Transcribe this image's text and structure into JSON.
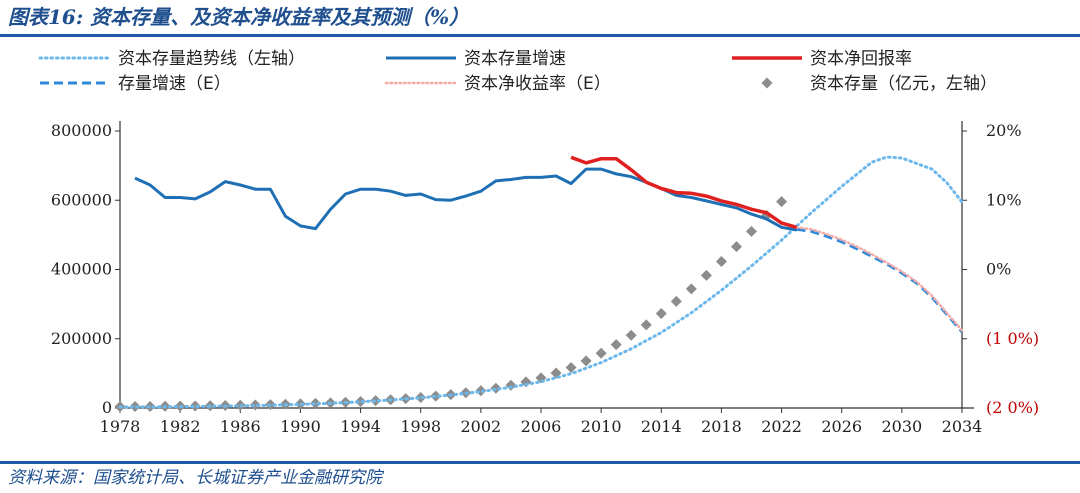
{
  "title": "图表16:  资本存量、及资本净收益率及其预测（%）",
  "source": "资料来源：国家统计局、长城证券产业金融研究院",
  "colors": {
    "header_blue": "#1f5aa6",
    "growth_line": "#1f6fb5",
    "trend_dotted": "#6cb8ec",
    "growth_forecast": "#2e8ad8",
    "return_line": "#e02020",
    "return_forecast": "#f5aaaa",
    "stock_marker": "#8c8c8c",
    "negative_tick": "#c00000"
  },
  "chart_data": {
    "type": "line",
    "legend_position": "top",
    "left_axis": {
      "ylim": [
        0,
        800000
      ],
      "ticks": [
        0,
        200000,
        400000,
        600000,
        800000
      ],
      "tick_labels": [
        "0",
        "200000",
        "400000",
        "600000",
        "800000"
      ]
    },
    "right_axis": {
      "ylim": [
        -0.2,
        0.2
      ],
      "ticks": [
        -0.2,
        -0.1,
        0,
        0.1,
        0.2
      ],
      "tick_labels": [
        "(2 0%)",
        "(1 0%)",
        "0%",
        "10%",
        "20%"
      ]
    },
    "x_axis": {
      "xlim": [
        1978,
        2034
      ],
      "ticks": [
        1978,
        1982,
        1986,
        1990,
        1994,
        1998,
        2002,
        2006,
        2010,
        2014,
        2018,
        2022,
        2026,
        2030,
        2034
      ],
      "tick_labels": [
        "1978",
        "1982",
        "1986",
        "1990",
        "1994",
        "1998",
        "2002",
        "2006",
        "2010",
        "2014",
        "2018",
        "2022",
        "2026",
        "2030",
        "2034"
      ]
    },
    "legend": [
      {
        "label": "资本存量趋势线（左轴）",
        "style": "dotted",
        "color": "#6cb8ec"
      },
      {
        "label": "资本存量增速",
        "style": "solid",
        "color": "#1f6fb5"
      },
      {
        "label": "资本净回报率",
        "style": "solid",
        "color": "#e02020"
      },
      {
        "label": "存量增速（E）",
        "style": "dashed",
        "color": "#2e8ad8"
      },
      {
        "label": "资本净收益率（E）",
        "style": "dotted",
        "color": "#f5aaaa"
      },
      {
        "label": "资本存量（亿元，左轴）",
        "style": "diamond",
        "color": "#8c8c8c"
      }
    ],
    "series": [
      {
        "name": "资本存量（亿元，左轴）",
        "axis": "left",
        "type": "scatter",
        "x": [
          1978,
          1979,
          1980,
          1981,
          1982,
          1983,
          1984,
          1985,
          1986,
          1987,
          1988,
          1989,
          1990,
          1991,
          1992,
          1993,
          1994,
          1995,
          1996,
          1997,
          1998,
          1999,
          2000,
          2001,
          2002,
          2003,
          2004,
          2005,
          2006,
          2007,
          2008,
          2009,
          2010,
          2011,
          2012,
          2013,
          2014,
          2015,
          2016,
          2017,
          2018,
          2019,
          2020,
          2021,
          2022
        ],
        "values": [
          4000,
          4200,
          4500,
          4900,
          5300,
          5800,
          6400,
          7100,
          7900,
          8800,
          9800,
          10800,
          12000,
          13300,
          14900,
          16700,
          18800,
          21200,
          23900,
          27000,
          30400,
          34200,
          38700,
          43900,
          50000,
          57200,
          65600,
          75400,
          87000,
          101000,
          117000,
          136000,
          158000,
          183000,
          210000,
          240000,
          273000,
          308000,
          344000,
          383000,
          423000,
          466000,
          510000,
          556000,
          596000
        ]
      },
      {
        "name": "资本存量趋势线（左轴）",
        "axis": "left",
        "type": "line",
        "x": [
          1978,
          1980,
          1982,
          1984,
          1986,
          1988,
          1990,
          1992,
          1994,
          1996,
          1998,
          2000,
          2002,
          2004,
          2006,
          2008,
          2010,
          2012,
          2014,
          2016,
          2018,
          2020,
          2022,
          2024,
          2026,
          2028,
          2029,
          2030,
          2032,
          2033,
          2034
        ],
        "values": [
          3000,
          3300,
          3900,
          4800,
          6200,
          8000,
          10500,
          13600,
          17800,
          23000,
          29500,
          37500,
          47500,
          60000,
          76000,
          99000,
          131000,
          171000,
          218000,
          275000,
          340000,
          410000,
          485000,
          565000,
          640000,
          710000,
          725000,
          722000,
          690000,
          650000,
          595000
        ]
      },
      {
        "name": "资本存量增速",
        "axis": "right",
        "type": "line",
        "x": [
          1979,
          1980,
          1981,
          1982,
          1983,
          1984,
          1985,
          1986,
          1987,
          1988,
          1989,
          1990,
          1991,
          1992,
          1993,
          1994,
          1995,
          1996,
          1997,
          1998,
          1999,
          2000,
          2001,
          2002,
          2003,
          2004,
          2005,
          2006,
          2007,
          2008,
          2009,
          2010,
          2011,
          2012,
          2013,
          2014,
          2015,
          2016,
          2017,
          2018,
          2019,
          2020,
          2021,
          2022,
          2023
        ],
        "values": [
          0.132,
          0.122,
          0.104,
          0.104,
          0.102,
          0.112,
          0.127,
          0.122,
          0.116,
          0.116,
          0.077,
          0.063,
          0.059,
          0.087,
          0.109,
          0.116,
          0.116,
          0.113,
          0.107,
          0.109,
          0.101,
          0.1,
          0.106,
          0.113,
          0.128,
          0.13,
          0.133,
          0.133,
          0.135,
          0.124,
          0.145,
          0.145,
          0.138,
          0.134,
          0.126,
          0.117,
          0.107,
          0.104,
          0.099,
          0.094,
          0.089,
          0.08,
          0.073,
          0.061,
          0.057
        ]
      },
      {
        "name": "资本净回报率",
        "axis": "right",
        "type": "line",
        "x": [
          2008,
          2009,
          2010,
          2011,
          2012,
          2013,
          2014,
          2015,
          2016,
          2017,
          2018,
          2019,
          2020,
          2021,
          2022,
          2023
        ],
        "values": [
          0.162,
          0.154,
          0.16,
          0.16,
          0.144,
          0.126,
          0.117,
          0.111,
          0.11,
          0.106,
          0.099,
          0.094,
          0.087,
          0.082,
          0.067,
          0.061
        ]
      },
      {
        "name": "存量增速（E）",
        "axis": "right",
        "type": "line",
        "x": [
          2023,
          2024,
          2025,
          2026,
          2027,
          2028,
          2029,
          2030,
          2031,
          2032,
          2033,
          2034
        ],
        "values": [
          0.058,
          0.055,
          0.048,
          0.04,
          0.03,
          0.019,
          0.008,
          -0.005,
          -0.02,
          -0.04,
          -0.065,
          -0.09
        ]
      },
      {
        "name": "资本净收益率（E）",
        "axis": "right",
        "type": "line",
        "x": [
          2023,
          2024,
          2025,
          2026,
          2027,
          2028,
          2029,
          2030,
          2031,
          2032,
          2033,
          2034
        ],
        "values": [
          0.061,
          0.058,
          0.051,
          0.043,
          0.033,
          0.022,
          0.01,
          -0.003,
          -0.018,
          -0.038,
          -0.063,
          -0.088
        ]
      }
    ]
  }
}
